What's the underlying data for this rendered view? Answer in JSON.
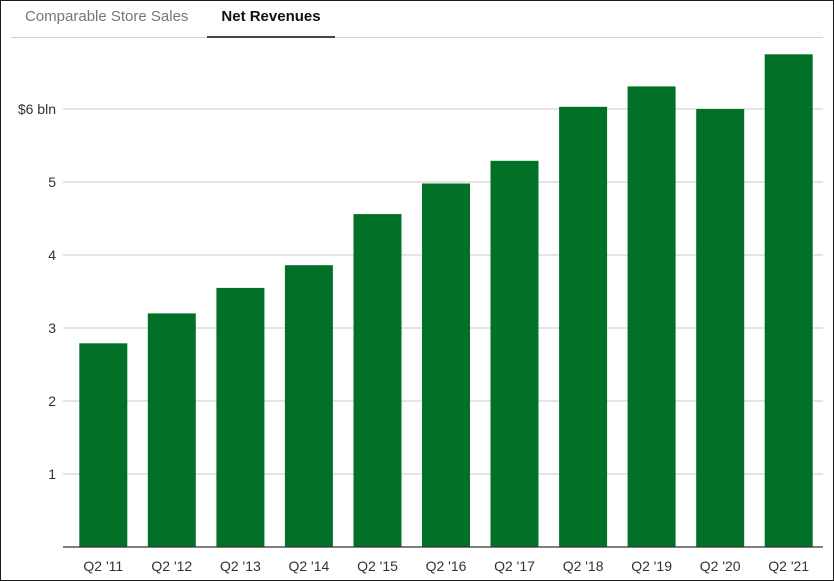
{
  "tabs": [
    {
      "label": "Comparable Store Sales",
      "active": false
    },
    {
      "label": "Net Revenues",
      "active": true
    }
  ],
  "colors": {
    "bar": "#027128",
    "grid": "#c8c8c8",
    "axis": "#333333",
    "text": "#333333"
  },
  "chart_data": {
    "type": "bar",
    "title": "Net Revenues",
    "xlabel": "",
    "ylabel": "",
    "categories": [
      "Q2 '11",
      "Q2 '12",
      "Q2 '13",
      "Q2 '14",
      "Q2 '15",
      "Q2 '16",
      "Q2 '17",
      "Q2 '18",
      "Q2 '19",
      "Q2 '20",
      "Q2 '21"
    ],
    "values": [
      2.79,
      3.2,
      3.55,
      3.86,
      4.56,
      4.98,
      5.29,
      6.03,
      6.31,
      6.0,
      6.75
    ],
    "ylim": [
      0,
      6.75
    ],
    "yticks": [
      1,
      2,
      3,
      4,
      5,
      6
    ],
    "ytick_labels": [
      "1",
      "2",
      "3",
      "4",
      "5",
      "$6 bln"
    ],
    "grid": true,
    "legend": false
  }
}
